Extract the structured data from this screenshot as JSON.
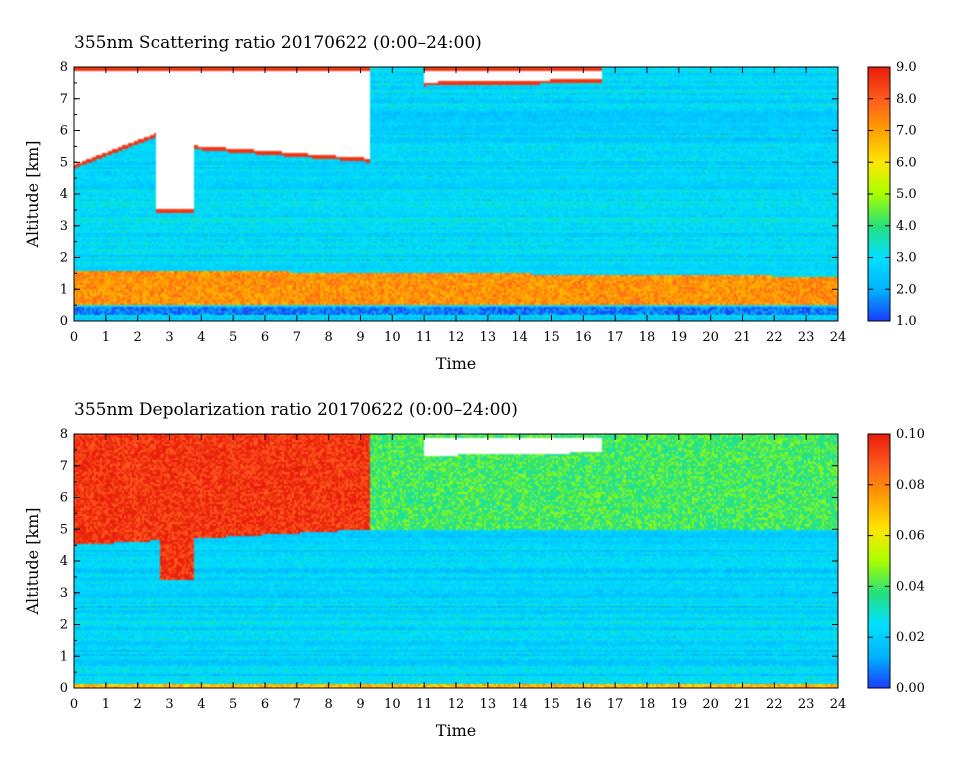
{
  "chart_data": [
    {
      "type": "heatmap",
      "title": "355nm Scattering ratio  20170622 (0:00–24:00)",
      "xlabel": "Time",
      "ylabel": "Altitude [km]",
      "xlim": [
        0,
        24
      ],
      "ylim": [
        0,
        8
      ],
      "x_ticks": [
        "0",
        "1",
        "2",
        "3",
        "4",
        "5",
        "6",
        "7",
        "8",
        "9",
        "10",
        "11",
        "12",
        "13",
        "14",
        "15",
        "16",
        "17",
        "18",
        "19",
        "20",
        "21",
        "22",
        "23",
        "24"
      ],
      "y_ticks": [
        "0",
        "1",
        "2",
        "3",
        "4",
        "5",
        "6",
        "7",
        "8"
      ],
      "colorbar": {
        "range": [
          1.0,
          9.0
        ],
        "tick_labels": [
          "1.0",
          "2.0",
          "3.0",
          "4.0",
          "5.0",
          "6.0",
          "7.0",
          "8.0",
          "9.0"
        ],
        "colors": [
          "#1a3cff",
          "#00b4ff",
          "#00e0ff",
          "#26e07a",
          "#a8ff00",
          "#ffe600",
          "#ffa000",
          "#ff5a1e",
          "#e81c0a"
        ]
      },
      "background_value": 2.8,
      "features": [
        {
          "name": "aerosol layer",
          "time": [
            0,
            24
          ],
          "alt_lower": [
            0.5,
            0.5
          ],
          "alt_upper": [
            1.6,
            1.4
          ],
          "value": 7.2
        },
        {
          "name": "near-surface layer",
          "time": [
            0,
            24
          ],
          "alt_lower": [
            0.2,
            0.2
          ],
          "alt_upper": [
            0.45,
            0.45
          ],
          "value": 1.5
        },
        {
          "name": "cloud",
          "time": [
            0,
            2.6
          ],
          "alt_lower": [
            4.8,
            5.8
          ],
          "alt_upper": [
            8,
            8
          ],
          "value": 9.5
        },
        {
          "name": "cloud",
          "time": [
            2.6,
            3.8
          ],
          "alt_lower": [
            3.4,
            3.4
          ],
          "alt_upper": [
            8,
            8
          ],
          "value": 9.5
        },
        {
          "name": "cloud",
          "time": [
            3.8,
            9.3
          ],
          "alt_lower": [
            5.4,
            5.0
          ],
          "alt_upper": [
            8,
            8
          ],
          "value": 9.5
        },
        {
          "name": "cloud",
          "time": [
            11,
            16.6
          ],
          "alt_lower": [
            7.4,
            7.5
          ],
          "alt_upper": [
            8,
            8
          ],
          "value": 9.5
        }
      ]
    },
    {
      "type": "heatmap",
      "title": "355nm Depolarization ratio  20170622 (0:00–24:00)",
      "xlabel": "Time",
      "ylabel": "Altitude [km]",
      "xlim": [
        0,
        24
      ],
      "ylim": [
        0,
        8
      ],
      "x_ticks": [
        "0",
        "1",
        "2",
        "3",
        "4",
        "5",
        "6",
        "7",
        "8",
        "9",
        "10",
        "11",
        "12",
        "13",
        "14",
        "15",
        "16",
        "17",
        "18",
        "19",
        "20",
        "21",
        "22",
        "23",
        "24"
      ],
      "y_ticks": [
        "0",
        "1",
        "2",
        "3",
        "4",
        "5",
        "6",
        "7",
        "8"
      ],
      "colorbar": {
        "range": [
          0.0,
          0.1
        ],
        "tick_labels": [
          "0.00",
          "0.02",
          "0.04",
          "0.06",
          "0.08",
          "0.10"
        ],
        "colors": [
          "#1a3cff",
          "#00b4ff",
          "#00e0ff",
          "#26e07a",
          "#a8ff00",
          "#ffe600",
          "#ffa000",
          "#ff5a1e",
          "#e81c0a"
        ]
      },
      "background_value": 0.022,
      "features": [
        {
          "name": "surface layer",
          "time": [
            0,
            24
          ],
          "alt_lower": [
            0.0,
            0.0
          ],
          "alt_upper": [
            0.12,
            0.12
          ],
          "value": 0.07
        },
        {
          "name": "high depolarization",
          "time": [
            0,
            9.3
          ],
          "alt_lower": [
            4.5,
            5.0
          ],
          "alt_upper": [
            8,
            8
          ],
          "value": 0.095
        },
        {
          "name": "high depolarization",
          "time": [
            2.7,
            3.8
          ],
          "alt_lower": [
            3.4,
            3.4
          ],
          "alt_upper": [
            8,
            8
          ],
          "value": 0.095
        },
        {
          "name": "cloud",
          "time": [
            11,
            16.6
          ],
          "alt_lower": [
            7.2,
            7.3
          ],
          "alt_upper": [
            8,
            8
          ],
          "value": 0.12
        },
        {
          "name": "upper region",
          "time": [
            9.3,
            24
          ],
          "alt_lower": [
            5.0,
            5.0
          ],
          "alt_upper": [
            8,
            8
          ],
          "value": 0.04
        }
      ]
    }
  ]
}
